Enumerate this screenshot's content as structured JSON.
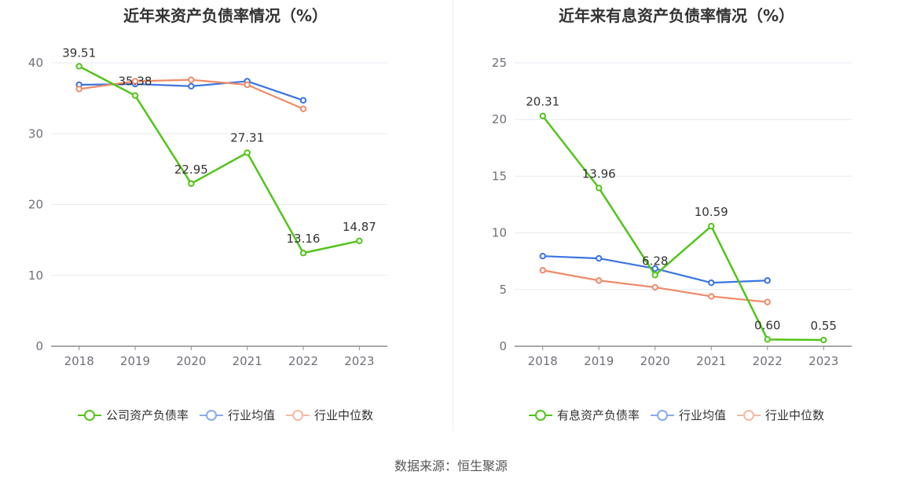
{
  "source": "数据来源：恒生聚源",
  "chart_data": [
    {
      "type": "line",
      "title": "近年来资产负债率情况（%）",
      "categories": [
        "2018",
        "2019",
        "2020",
        "2021",
        "2022",
        "2023"
      ],
      "ylim": [
        0,
        40
      ],
      "yticks": [
        0,
        10,
        20,
        30,
        40
      ],
      "grid": true,
      "legend_position": "bottom",
      "series": [
        {
          "name": "公司资产负债率",
          "color": "#52c41a",
          "values": [
            39.51,
            35.38,
            22.95,
            27.31,
            13.16,
            14.87
          ],
          "labels": [
            "39.51",
            "35.38",
            "22.95",
            "27.31",
            "13.16",
            "14.87"
          ]
        },
        {
          "name": "行业均值",
          "color": "#3b74e0",
          "values": [
            36.9,
            37.0,
            36.7,
            37.4,
            34.7,
            null
          ]
        },
        {
          "name": "行业中位数",
          "color": "#f08a68",
          "values": [
            36.3,
            37.4,
            37.6,
            36.9,
            33.5,
            null
          ]
        }
      ]
    },
    {
      "type": "line",
      "title": "近年来有息资产负债率情况（%）",
      "categories": [
        "2018",
        "2019",
        "2020",
        "2021",
        "2022",
        "2023"
      ],
      "ylim": [
        0,
        25
      ],
      "yticks": [
        0,
        5,
        10,
        15,
        20,
        25
      ],
      "grid": true,
      "legend_position": "bottom",
      "series": [
        {
          "name": "有息资产负债率",
          "color": "#52c41a",
          "values": [
            20.31,
            13.96,
            6.28,
            10.59,
            0.6,
            0.55
          ],
          "labels": [
            "20.31",
            "13.96",
            "6.28",
            "10.59",
            "0.60",
            "0.55"
          ]
        },
        {
          "name": "行业均值",
          "color": "#3b74e0",
          "values": [
            7.95,
            7.75,
            6.85,
            5.6,
            5.8,
            null
          ]
        },
        {
          "name": "行业中位数",
          "color": "#f08a68",
          "values": [
            6.7,
            5.8,
            5.2,
            4.4,
            3.9,
            null
          ]
        }
      ]
    }
  ]
}
